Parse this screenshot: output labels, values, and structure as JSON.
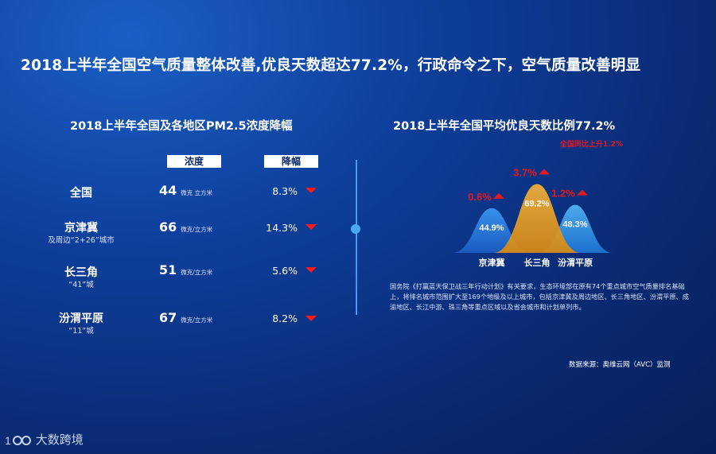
{
  "main_title": "2018上半年全国空气质量整体改善,优良天数超达77.2%，行政命令之下，空气质量改善明显",
  "left_panel": {
    "title": "2018上半年全国及各地区PM2.5浓度降幅",
    "col_concentration": "浓度",
    "col_decline": "降幅",
    "unit_a": "微克 立方米",
    "unit_b": "微克/立方米",
    "rows": [
      {
        "region": "全国",
        "sub": "",
        "value": "44",
        "decline": "8.3%"
      },
      {
        "region": "京津冀",
        "sub": "及周边“2+26”城市",
        "value": "66",
        "decline": "14.3%"
      },
      {
        "region": "长三角",
        "sub": "“41”城",
        "value": "51",
        "decline": "5.6%"
      },
      {
        "region": "汾渭平原",
        "sub": "“11”城",
        "value": "67",
        "decline": "8.2%"
      }
    ]
  },
  "right_panel": {
    "title": "2018上半年全国平均优良天数比例77.2%",
    "yoy_note": "全国同比上升1.2%",
    "note": "国务院《打赢蓝天保卫战三年行动计划》有关要求，生态环境部在原有74个重点城市空气质量排名基础上，将排名城市范围扩大至169个地级及以上城市，包括京津冀及周边地区、长三角地区、汾渭平原、成渝地区、长江中游、珠三角等重点区域以及省会城市和计划单列市。",
    "source": "数据来源：奥维云网（AVC）监测"
  },
  "chart_data": {
    "type": "area",
    "title": "2018上半年全国平均优良天数比例77.2%",
    "categories": [
      "京津冀",
      "长三角",
      "汾渭平原"
    ],
    "values": [
      44.9,
      69.2,
      48.3
    ],
    "value_labels": [
      "44.9%",
      "69.2%",
      "48.3%"
    ],
    "changes": [
      0.6,
      3.7,
      1.2
    ],
    "change_labels": [
      "0.6%",
      "3.7%",
      "1.2%"
    ],
    "colors": [
      "#2e86e8",
      "#f0a020",
      "#39a6ef"
    ],
    "change_color": "#e8181e",
    "unit": "%"
  },
  "brand": "大数跨境"
}
